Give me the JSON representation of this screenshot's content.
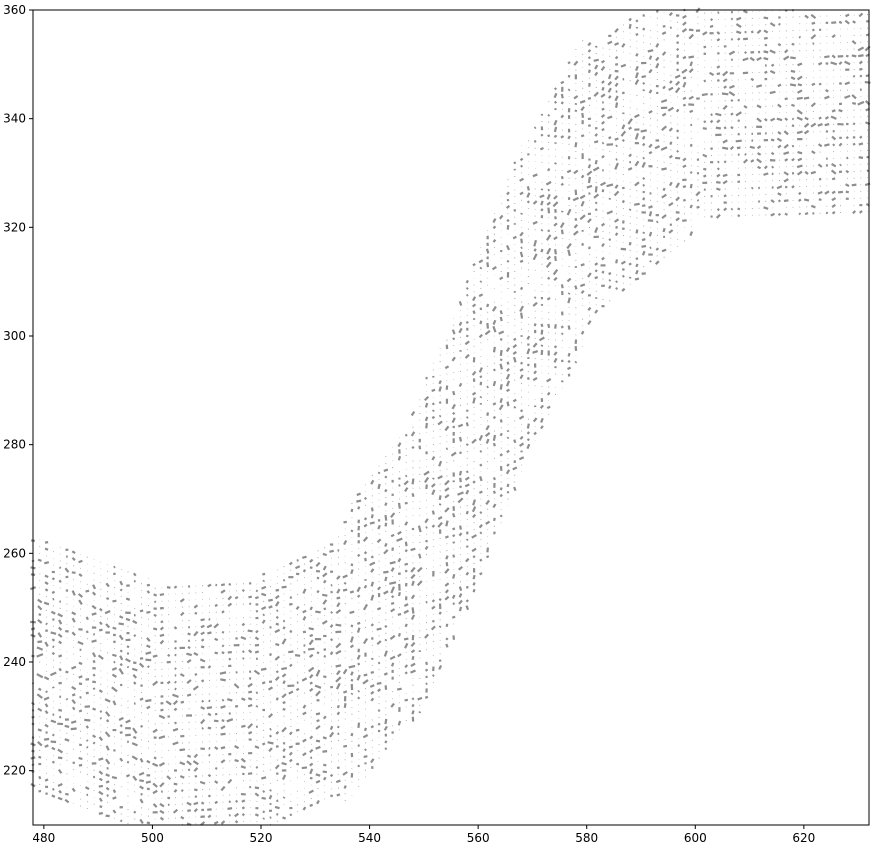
{
  "chart_data": {
    "type": "quiver",
    "title": "",
    "xlabel": "",
    "ylabel": "",
    "xlim": [
      478,
      632
    ],
    "ylim": [
      210,
      360
    ],
    "xticks": [
      480,
      500,
      520,
      540,
      560,
      580,
      600,
      620
    ],
    "yticks": [
      220,
      240,
      260,
      280,
      300,
      320,
      340,
      360
    ],
    "grid": false,
    "legend": "none",
    "arrow_color": "#8c8f8c",
    "field_region": {
      "description": "S-shaped river channel band",
      "centerline": [
        {
          "x": 478,
          "y": 240
        },
        {
          "x": 500,
          "y": 232
        },
        {
          "x": 520,
          "y": 233
        },
        {
          "x": 535,
          "y": 240
        },
        {
          "x": 548,
          "y": 258
        },
        {
          "x": 558,
          "y": 280
        },
        {
          "x": 568,
          "y": 305
        },
        {
          "x": 580,
          "y": 328
        },
        {
          "x": 600,
          "y": 344
        },
        {
          "x": 632,
          "y": 345
        }
      ],
      "half_width_x": 38,
      "half_width_y": 20,
      "grid_spacing": 1,
      "scatter_arrows": true
    }
  }
}
